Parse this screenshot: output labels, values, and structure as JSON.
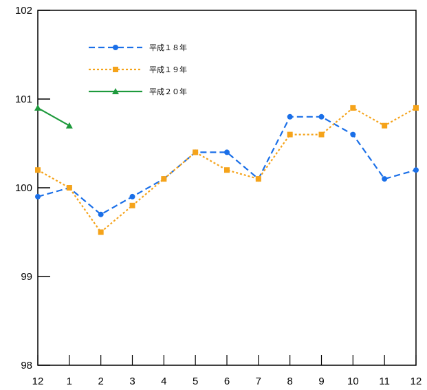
{
  "chart_data": {
    "type": "line",
    "categories": [
      "12",
      "1",
      "2",
      "3",
      "4",
      "5",
      "6",
      "7",
      "8",
      "9",
      "10",
      "11",
      "12"
    ],
    "ylim": [
      98,
      102
    ],
    "yticks": [
      98,
      99,
      100,
      101,
      102
    ],
    "grid": false,
    "legend": "top-left",
    "series": [
      {
        "name": "平成１８年",
        "color": "#1a6fe8",
        "dash": "dashed",
        "marker": "circle",
        "values": [
          99.9,
          100.0,
          99.7,
          99.9,
          100.1,
          100.4,
          100.4,
          100.1,
          100.8,
          100.8,
          100.6,
          100.1,
          100.2
        ]
      },
      {
        "name": "平成１９年",
        "color": "#f5a31a",
        "dash": "dotted",
        "marker": "square",
        "values": [
          100.2,
          100.0,
          99.5,
          99.8,
          100.1,
          100.4,
          100.2,
          100.1,
          100.6,
          100.6,
          100.9,
          100.7,
          100.9
        ]
      },
      {
        "name": "平成２０年",
        "color": "#1e9a3c",
        "dash": "solid",
        "marker": "triangle",
        "values": [
          100.9,
          100.7,
          null,
          null,
          null,
          null,
          null,
          null,
          null,
          null,
          null,
          null,
          null
        ]
      }
    ]
  }
}
